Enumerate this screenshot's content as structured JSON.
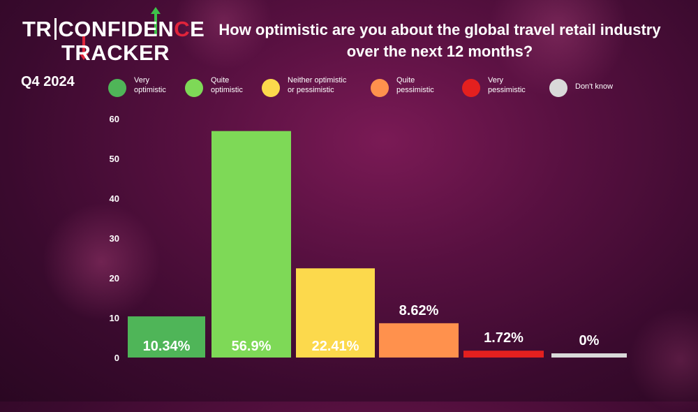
{
  "logo": {
    "prefix": "TR",
    "part1": "CONFIDEN",
    "part2": "C",
    "part3": "E",
    "line2": "TRACKER"
  },
  "quarter": "Q4 2024",
  "chart_data": {
    "type": "bar",
    "title": "How optimistic are you about the global travel retail industry over the next 12 months?",
    "categories": [
      "Very optimistic",
      "Quite optimistic",
      "Neither optimistic or pessimistic",
      "Quite pessimistic",
      "Very pessimistic",
      "Don't know"
    ],
    "legend_labels": [
      "Very\noptimistic",
      "Quite\noptimistic",
      "Neither optimistic\nor pessimistic",
      "Quite\npessimistic",
      "Very\npessimistic",
      "Don't know"
    ],
    "values": [
      10.34,
      56.9,
      22.41,
      8.62,
      1.72,
      0
    ],
    "data_labels": [
      "10.34%",
      "56.9%",
      "22.41%",
      "8.62%",
      "1.72%",
      "0%"
    ],
    "label_inside": [
      true,
      true,
      true,
      false,
      false,
      false
    ],
    "colors": [
      "#4fb558",
      "#7ed957",
      "#fcd94c",
      "#ff914d",
      "#e4201f",
      "#d9d9d9"
    ],
    "ylim": [
      0,
      60
    ],
    "yticks": [
      0,
      10,
      20,
      30,
      40,
      50,
      60
    ],
    "xlabel": "",
    "ylabel": "",
    "grid": false,
    "legend_position": "top"
  }
}
